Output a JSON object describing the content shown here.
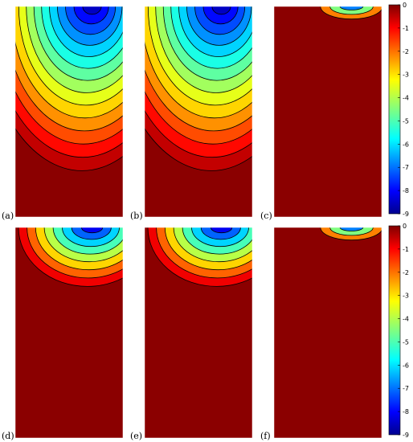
{
  "chart_data": {
    "type": "contour",
    "colormap": "jet",
    "clim": [
      -9,
      0
    ],
    "colorbar_ticks": [
      "0",
      "-1",
      "-2",
      "-3",
      "-4",
      "-5",
      "-6",
      "-7",
      "-8",
      "-9"
    ],
    "panels": [
      {
        "label": "(a)",
        "min_value": -9,
        "extent": "broad",
        "levels": 14
      },
      {
        "label": "(b)",
        "min_value": -9,
        "extent": "broad",
        "levels": 14
      },
      {
        "label": "(c)",
        "min_value": -9,
        "extent": "thin",
        "levels": 3
      },
      {
        "label": "(d)",
        "min_value": -9,
        "extent": "medium",
        "levels": 8
      },
      {
        "label": "(e)",
        "min_value": -9,
        "extent": "medium",
        "levels": 8
      },
      {
        "label": "(f)",
        "min_value": -9,
        "extent": "thin",
        "levels": 3
      }
    ]
  }
}
